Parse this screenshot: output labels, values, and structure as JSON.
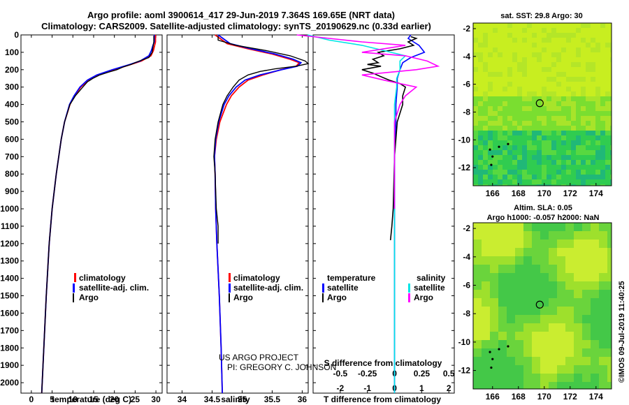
{
  "title": {
    "line1": "Argo profile: aoml 3900614_417 29-Jun-2019 7.364S 169.65E (NRT data)",
    "line2": "Climatology: CARS2009. Satellite-adjusted climatology: synTS_20190629.nc (0.33d earlier)"
  },
  "colors": {
    "climatology": "#ff0000",
    "satellite": "#0000ff",
    "argo": "#000000",
    "sal_satellite": "#00e5e5",
    "sal_argo": "#ff00ff"
  },
  "depth_axis": {
    "ticks": [
      "0",
      "100",
      "200",
      "300",
      "400",
      "500",
      "600",
      "700",
      "800",
      "900",
      "1000",
      "1100",
      "1200",
      "1300",
      "1400",
      "1500",
      "1600",
      "1700",
      "1800",
      "1900",
      "2000"
    ],
    "range": [
      0,
      2060
    ]
  },
  "credit": {
    "line1": "US ARGO PROJECT",
    "line2": "PI: GREGORY C. JOHNSON"
  },
  "chart_data": [
    {
      "type": "line",
      "name": "temperature panel",
      "xlabel": "temperature (deg C)",
      "xticks": [
        "0",
        "5",
        "10",
        "15",
        "20",
        "25",
        "30"
      ],
      "xlim": [
        -2.5,
        31.5
      ],
      "ylim": [
        0,
        2060
      ],
      "legend": [
        "climatology",
        "satellite-adj. clim.",
        "Argo"
      ],
      "series": [
        {
          "name": "climatology",
          "depth": [
            0,
            40,
            60,
            90,
            120,
            150,
            170,
            200,
            230,
            260,
            300,
            350,
            400,
            500,
            600,
            800,
            1000,
            1200,
            1500,
            1800,
            2060
          ],
          "values": [
            29.9,
            29.9,
            29.7,
            29.4,
            28.8,
            26.5,
            24.0,
            20.0,
            16.2,
            13.8,
            11.9,
            10.4,
            9.3,
            8.0,
            7.2,
            6.0,
            5.0,
            4.3,
            3.6,
            3.0,
            2.5
          ]
        },
        {
          "name": "satellite-adj. clim.",
          "depth": [
            0,
            40,
            60,
            90,
            120,
            150,
            170,
            200,
            230,
            260,
            300,
            350,
            400,
            500,
            600,
            800,
            1000,
            1200,
            1500,
            1800,
            2060
          ],
          "values": [
            29.6,
            29.6,
            29.3,
            28.9,
            28.3,
            26.2,
            23.7,
            19.5,
            15.8,
            13.5,
            11.7,
            10.3,
            9.2,
            8.0,
            7.2,
            6.0,
            5.0,
            4.3,
            3.6,
            3.0,
            2.5
          ]
        },
        {
          "name": "Argo",
          "depth": [
            5,
            40,
            70,
            100,
            130,
            150,
            170,
            185,
            200,
            215,
            230,
            250,
            270,
            300,
            350,
            400,
            500,
            600,
            800,
            1000,
            1200,
            1500,
            1800,
            2060
          ],
          "values": [
            29.5,
            29.5,
            29.3,
            29.1,
            28.3,
            26.0,
            24.0,
            22.0,
            20.6,
            18.5,
            16.5,
            14.8,
            13.5,
            12.4,
            10.6,
            9.3,
            8.0,
            7.2,
            6.0,
            5.0,
            4.3,
            3.6,
            3.0,
            2.5
          ]
        }
      ]
    },
    {
      "type": "line",
      "name": "salinity panel",
      "xlabel": "salinity",
      "xticks": [
        "34",
        "34.5",
        "35",
        "35.5",
        "36"
      ],
      "xlim": [
        33.75,
        36.1
      ],
      "ylim": [
        0,
        2060
      ],
      "legend": [
        "climatology",
        "satellite-adj. clim.",
        "Argo"
      ],
      "series": [
        {
          "name": "climatology",
          "depth": [
            0,
            50,
            80,
            110,
            140,
            160,
            180,
            200,
            230,
            260,
            300,
            350,
            400,
            500,
            600,
            700,
            800,
            1000,
            1200,
            1500,
            1800,
            2060
          ],
          "values": [
            34.55,
            34.75,
            35.1,
            35.5,
            35.8,
            35.95,
            35.9,
            35.65,
            35.35,
            35.1,
            34.95,
            34.82,
            34.74,
            34.63,
            34.57,
            34.54,
            34.55,
            34.56,
            34.58,
            34.62,
            34.65,
            34.67
          ]
        },
        {
          "name": "satellite-adj. clim.",
          "depth": [
            0,
            50,
            80,
            110,
            140,
            160,
            180,
            200,
            230,
            260,
            300,
            350,
            400,
            500,
            600,
            700,
            800,
            1000,
            1200,
            1500,
            1800,
            2060
          ],
          "values": [
            34.6,
            34.8,
            35.15,
            35.55,
            35.85,
            35.98,
            35.92,
            35.66,
            35.3,
            35.05,
            34.9,
            34.78,
            34.7,
            34.61,
            34.56,
            34.54,
            34.55,
            34.56,
            34.58,
            34.62,
            34.65,
            34.67
          ]
        },
        {
          "name": "Argo",
          "depth": [
            5,
            30,
            60,
            90,
            120,
            150,
            165,
            180,
            195,
            210,
            230,
            260,
            300,
            350,
            400,
            500,
            600,
            700,
            800,
            1000,
            1100,
            1200
          ],
          "values": [
            34.6,
            34.6,
            34.9,
            35.4,
            35.8,
            36.05,
            36.1,
            35.9,
            35.55,
            35.3,
            35.1,
            34.95,
            34.85,
            34.75,
            34.68,
            34.6,
            34.55,
            34.53,
            34.55,
            34.57,
            34.6,
            34.6
          ]
        }
      ]
    },
    {
      "type": "line",
      "name": "difference panel",
      "xlabel": "T difference from climatology",
      "xlabel2": "S difference from climatology",
      "xticks": [
        "-2",
        "-1",
        "0",
        "1",
        "2"
      ],
      "xticks2": [
        "-0.5",
        "-0.25",
        "0",
        "0.25",
        "0.5"
      ],
      "xlim": [
        -3.0,
        2.2
      ],
      "ylim": [
        0,
        2060
      ],
      "legend_temperature": {
        "heading": "temperature",
        "items": [
          "satellite",
          "Argo"
        ]
      },
      "legend_salinity": {
        "heading": "salinity",
        "items": [
          "satellite",
          "Argo"
        ]
      },
      "series": [
        {
          "name": "temperature satellite",
          "depth": [
            0,
            20,
            40,
            60,
            80,
            100,
            130,
            160,
            200,
            250,
            300,
            400,
            500,
            700,
            1000,
            1500,
            2060
          ],
          "values": [
            0.6,
            0.5,
            0.7,
            0.9,
            1.0,
            1.1,
            0.6,
            0.3,
            0.2,
            0.1,
            0.1,
            0.05,
            0.05,
            0.0,
            0.0,
            0.0,
            0.0
          ]
        },
        {
          "name": "temperature Argo",
          "depth": [
            10,
            20,
            40,
            60,
            80,
            100,
            120,
            140,
            160,
            170,
            180,
            200,
            220,
            240,
            260,
            280,
            300,
            350,
            400,
            500,
            700,
            1000,
            1100,
            1180
          ],
          "values": [
            0.6,
            0.8,
            0.5,
            0.7,
            0.2,
            -0.6,
            -0.4,
            -0.8,
            -0.6,
            -1.0,
            -0.5,
            -1.2,
            -0.8,
            -0.5,
            -0.2,
            0.2,
            0.4,
            0.3,
            0.3,
            0.1,
            0.0,
            -0.05,
            -0.1,
            -0.15
          ]
        },
        {
          "name": "salinity satellite",
          "depth": [
            0,
            30,
            60,
            90,
            120,
            150,
            200,
            250,
            300,
            400,
            500,
            700,
            1000,
            1500,
            2060
          ],
          "values": [
            -0.8,
            -0.6,
            -0.3,
            -0.1,
            0.1,
            0.05,
            0.05,
            0.02,
            0.02,
            0.0,
            0.0,
            0.0,
            0.0,
            0.0,
            0.0
          ]
        },
        {
          "name": "salinity Argo",
          "depth": [
            0,
            20,
            40,
            60,
            80,
            100,
            120,
            150,
            180,
            200,
            230,
            260,
            300,
            350,
            400,
            500,
            700,
            1000
          ],
          "values": [
            -0.9,
            -0.6,
            -0.3,
            0.1,
            -0.1,
            -0.3,
            0.1,
            0.3,
            0.4,
            0.2,
            -0.3,
            -0.1,
            0.2,
            0.1,
            0.05,
            0.0,
            0.0,
            0.0
          ]
        }
      ]
    },
    {
      "type": "heatmap",
      "name": "SST map",
      "title": "sat. SST: 29.8 Argo: 30",
      "xticks": [
        "166",
        "168",
        "170",
        "172",
        "174"
      ],
      "yticks": [
        "-2",
        "-4",
        "-6",
        "-8",
        "-10",
        "-12"
      ],
      "xlim": [
        164.5,
        175.2
      ],
      "ylim": [
        -13.3,
        -1.6
      ],
      "profile_location": {
        "lon": 169.65,
        "lat": -7.364
      }
    },
    {
      "type": "heatmap",
      "name": "SLA map",
      "title": "Altim. SLA: 0.05",
      "subtitle": "Argo h1000: -0.057 h2000: NaN",
      "xticks": [
        "166",
        "168",
        "170",
        "172",
        "174"
      ],
      "yticks": [
        "-2",
        "-4",
        "-6",
        "-8",
        "-10",
        "-12"
      ],
      "xlim": [
        164.5,
        175.2
      ],
      "ylim": [
        -13.3,
        -1.6
      ],
      "profile_location": {
        "lon": 169.65,
        "lat": -7.364
      }
    }
  ],
  "footer": {
    "imos": "©IMOS 09-Jul-2019 11:40:25"
  }
}
